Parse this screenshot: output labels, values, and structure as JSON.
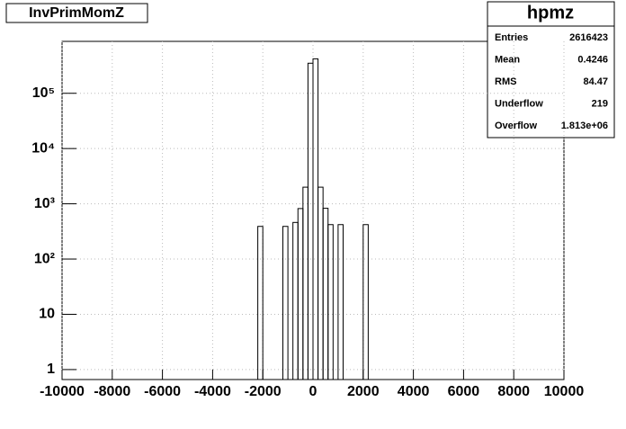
{
  "chart_data": {
    "type": "histogram",
    "title": "InvPrimMomZ",
    "bins": [
      -2200,
      -2000,
      -1800,
      -1600,
      -1400,
      -1200,
      -1000,
      -800,
      -600,
      -400,
      -200,
      0,
      200,
      400,
      600,
      800,
      1000,
      1200,
      1400,
      1600,
      1800,
      2000,
      2200
    ],
    "values": [
      390,
      0,
      0,
      0,
      0,
      390,
      0,
      460,
      820,
      2000,
      350000,
      420000,
      2000,
      830,
      420,
      0,
      420,
      0,
      0,
      0,
      0,
      420
    ],
    "color": "#000000",
    "xlim": [
      -10000,
      10000
    ],
    "xticks": [
      -10000,
      -8000,
      -6000,
      -4000,
      -2000,
      0,
      2000,
      4000,
      6000,
      8000,
      10000
    ],
    "ylim": [
      0.66,
      870000
    ],
    "log_y": true,
    "yticks": [
      1,
      10,
      {
        "value": 100,
        "label": "10²"
      },
      {
        "value": 1000,
        "label": "10³"
      },
      {
        "value": 10000,
        "label": "10⁴"
      },
      {
        "value": 100000,
        "label": "10⁵"
      }
    ],
    "grid": true,
    "stats": {
      "title": "hpmz",
      "rows": [
        {
          "label": "Entries",
          "value": 2616423
        },
        {
          "label": "Mean",
          "value": 0.4246
        },
        {
          "label": "RMS",
          "value": 84.47
        },
        {
          "label": "Underflow",
          "value": 219
        },
        {
          "label": "Overflow",
          "value": "1.813e+06"
        }
      ]
    }
  }
}
